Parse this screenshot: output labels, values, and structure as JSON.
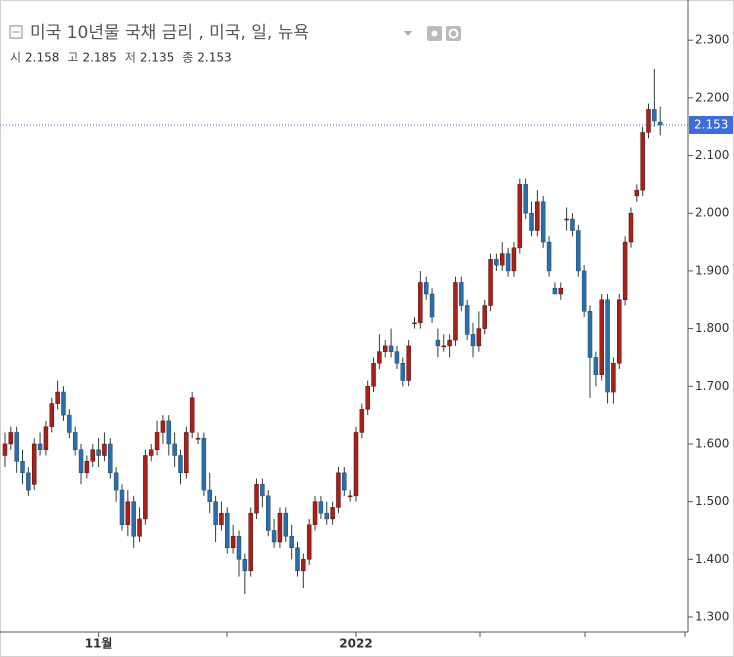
{
  "chart_data": {
    "type": "candlestick",
    "title": "미국 10년물 국채 금리 , 미국, 일, 뉴욕",
    "ohlc_labels": [
      "시",
      "고",
      "저",
      "종"
    ],
    "up_color": "#a8201a",
    "down_color": "#2b6ea8",
    "wick_color": "#2f3e3a",
    "xlim": [
      -0.85,
      116.75
    ],
    "xticks": [
      {
        "value": 16,
        "label": "11월"
      },
      {
        "value": 60,
        "label": "2022"
      }
    ],
    "ylim": [
      1.274,
      2.361
    ],
    "yticks": [
      {
        "value": 1.3,
        "label": "1.300"
      },
      {
        "value": 1.4,
        "label": "1.400"
      },
      {
        "value": 1.5,
        "label": "1.500"
      },
      {
        "value": 1.6,
        "label": "1.600"
      },
      {
        "value": 1.7,
        "label": "1.700"
      },
      {
        "value": 1.8,
        "label": "1.800"
      },
      {
        "value": 1.9,
        "label": "1.900"
      },
      {
        "value": 2.0,
        "label": "2.000"
      },
      {
        "value": 2.1,
        "label": "2.100"
      },
      {
        "value": 2.2,
        "label": "2.200"
      },
      {
        "value": 2.3,
        "label": "2.300"
      }
    ],
    "ohlc": [
      [
        1.58,
        1.62,
        1.56,
        1.6
      ],
      [
        1.6,
        1.63,
        1.59,
        1.62
      ],
      [
        1.62,
        1.63,
        1.55,
        1.57
      ],
      [
        1.57,
        1.59,
        1.53,
        1.55
      ],
      [
        1.55,
        1.56,
        1.51,
        1.52
      ],
      [
        1.53,
        1.61,
        1.52,
        1.6
      ],
      [
        1.6,
        1.62,
        1.58,
        1.59
      ],
      [
        1.59,
        1.64,
        1.58,
        1.63
      ],
      [
        1.63,
        1.68,
        1.62,
        1.67
      ],
      [
        1.67,
        1.71,
        1.66,
        1.69
      ],
      [
        1.69,
        1.7,
        1.64,
        1.65
      ],
      [
        1.65,
        1.66,
        1.61,
        1.62
      ],
      [
        1.62,
        1.63,
        1.58,
        1.59
      ],
      [
        1.59,
        1.6,
        1.53,
        1.55
      ],
      [
        1.55,
        1.58,
        1.54,
        1.57
      ],
      [
        1.57,
        1.6,
        1.56,
        1.59
      ],
      [
        1.59,
        1.61,
        1.56,
        1.58
      ],
      [
        1.58,
        1.62,
        1.57,
        1.6
      ],
      [
        1.6,
        1.61,
        1.54,
        1.55
      ],
      [
        1.55,
        1.56,
        1.5,
        1.52
      ],
      [
        1.52,
        1.53,
        1.45,
        1.46
      ],
      [
        1.46,
        1.52,
        1.44,
        1.5
      ],
      [
        1.5,
        1.51,
        1.42,
        1.44
      ],
      [
        1.44,
        1.49,
        1.43,
        1.47
      ],
      [
        1.47,
        1.59,
        1.46,
        1.58
      ],
      [
        1.58,
        1.6,
        1.57,
        1.59
      ],
      [
        1.59,
        1.64,
        1.58,
        1.62
      ],
      [
        1.62,
        1.65,
        1.6,
        1.64
      ],
      [
        1.64,
        1.65,
        1.58,
        1.6
      ],
      [
        1.6,
        1.62,
        1.56,
        1.58
      ],
      [
        1.58,
        1.59,
        1.53,
        1.55
      ],
      [
        1.55,
        1.63,
        1.54,
        1.62
      ],
      [
        1.62,
        1.69,
        1.61,
        1.68
      ],
      [
        1.61,
        1.62,
        1.6,
        1.61
      ],
      [
        1.61,
        1.62,
        1.51,
        1.52
      ],
      [
        1.52,
        1.55,
        1.48,
        1.5
      ],
      [
        1.5,
        1.51,
        1.43,
        1.46
      ],
      [
        1.46,
        1.5,
        1.45,
        1.48
      ],
      [
        1.48,
        1.49,
        1.41,
        1.42
      ],
      [
        1.42,
        1.46,
        1.41,
        1.44
      ],
      [
        1.44,
        1.45,
        1.37,
        1.4
      ],
      [
        1.4,
        1.41,
        1.34,
        1.38
      ],
      [
        1.38,
        1.49,
        1.37,
        1.48
      ],
      [
        1.48,
        1.54,
        1.47,
        1.53
      ],
      [
        1.53,
        1.54,
        1.49,
        1.51
      ],
      [
        1.51,
        1.52,
        1.44,
        1.45
      ],
      [
        1.45,
        1.47,
        1.42,
        1.43
      ],
      [
        1.43,
        1.49,
        1.42,
        1.48
      ],
      [
        1.48,
        1.49,
        1.43,
        1.44
      ],
      [
        1.44,
        1.46,
        1.4,
        1.42
      ],
      [
        1.42,
        1.43,
        1.37,
        1.38
      ],
      [
        1.38,
        1.41,
        1.35,
        1.4
      ],
      [
        1.4,
        1.47,
        1.39,
        1.46
      ],
      [
        1.46,
        1.51,
        1.45,
        1.5
      ],
      [
        1.5,
        1.51,
        1.47,
        1.48
      ],
      [
        1.48,
        1.5,
        1.46,
        1.47
      ],
      [
        1.47,
        1.5,
        1.46,
        1.49
      ],
      [
        1.49,
        1.56,
        1.48,
        1.55
      ],
      [
        1.55,
        1.56,
        1.51,
        1.52
      ],
      [
        1.51,
        1.52,
        1.5,
        1.51
      ],
      [
        1.51,
        1.63,
        1.5,
        1.62
      ],
      [
        1.62,
        1.67,
        1.61,
        1.66
      ],
      [
        1.66,
        1.71,
        1.65,
        1.7
      ],
      [
        1.7,
        1.75,
        1.69,
        1.74
      ],
      [
        1.74,
        1.79,
        1.73,
        1.76
      ],
      [
        1.76,
        1.78,
        1.75,
        1.77
      ],
      [
        1.77,
        1.8,
        1.75,
        1.76
      ],
      [
        1.76,
        1.77,
        1.73,
        1.74
      ],
      [
        1.74,
        1.75,
        1.7,
        1.71
      ],
      [
        1.71,
        1.78,
        1.7,
        1.77
      ],
      [
        1.81,
        1.82,
        1.8,
        1.81
      ],
      [
        1.81,
        1.9,
        1.8,
        1.88
      ],
      [
        1.88,
        1.89,
        1.85,
        1.86
      ],
      [
        1.86,
        1.87,
        1.81,
        1.82
      ],
      [
        1.78,
        1.8,
        1.75,
        1.77
      ],
      [
        1.77,
        1.79,
        1.76,
        1.77
      ],
      [
        1.77,
        1.79,
        1.75,
        1.78
      ],
      [
        1.78,
        1.89,
        1.77,
        1.88
      ],
      [
        1.88,
        1.89,
        1.83,
        1.84
      ],
      [
        1.84,
        1.85,
        1.78,
        1.79
      ],
      [
        1.79,
        1.81,
        1.75,
        1.77
      ],
      [
        1.77,
        1.83,
        1.76,
        1.8
      ],
      [
        1.8,
        1.85,
        1.79,
        1.84
      ],
      [
        1.84,
        1.93,
        1.83,
        1.92
      ],
      [
        1.92,
        1.93,
        1.9,
        1.91
      ],
      [
        1.91,
        1.95,
        1.9,
        1.93
      ],
      [
        1.93,
        1.94,
        1.89,
        1.9
      ],
      [
        1.9,
        1.95,
        1.89,
        1.94
      ],
      [
        1.94,
        2.06,
        1.93,
        2.05
      ],
      [
        2.05,
        2.06,
        1.99,
        2.0
      ],
      [
        2.0,
        2.02,
        1.96,
        1.97
      ],
      [
        1.97,
        2.04,
        1.96,
        2.02
      ],
      [
        2.02,
        2.03,
        1.94,
        1.95
      ],
      [
        1.95,
        1.96,
        1.89,
        1.9
      ],
      [
        1.87,
        1.88,
        1.86,
        1.86
      ],
      [
        1.86,
        1.88,
        1.85,
        1.87
      ],
      [
        1.99,
        2.01,
        1.97,
        1.99
      ],
      [
        1.99,
        2.0,
        1.96,
        1.97
      ],
      [
        1.97,
        1.98,
        1.89,
        1.9
      ],
      [
        1.9,
        1.91,
        1.82,
        1.83
      ],
      [
        1.83,
        1.84,
        1.68,
        1.75
      ],
      [
        1.75,
        1.76,
        1.7,
        1.72
      ],
      [
        1.72,
        1.86,
        1.71,
        1.85
      ],
      [
        1.85,
        1.86,
        1.67,
        1.69
      ],
      [
        1.69,
        1.75,
        1.67,
        1.74
      ],
      [
        1.74,
        1.86,
        1.73,
        1.85
      ],
      [
        1.85,
        1.96,
        1.84,
        1.95
      ],
      [
        1.95,
        2.01,
        1.94,
        2.0
      ],
      [
        2.03,
        2.05,
        2.02,
        2.04
      ],
      [
        2.04,
        2.15,
        2.03,
        2.14
      ],
      [
        2.14,
        2.19,
        2.13,
        2.18
      ],
      [
        2.18,
        2.25,
        2.15,
        2.16
      ],
      [
        2.158,
        2.185,
        2.135,
        2.153
      ]
    ]
  }
}
